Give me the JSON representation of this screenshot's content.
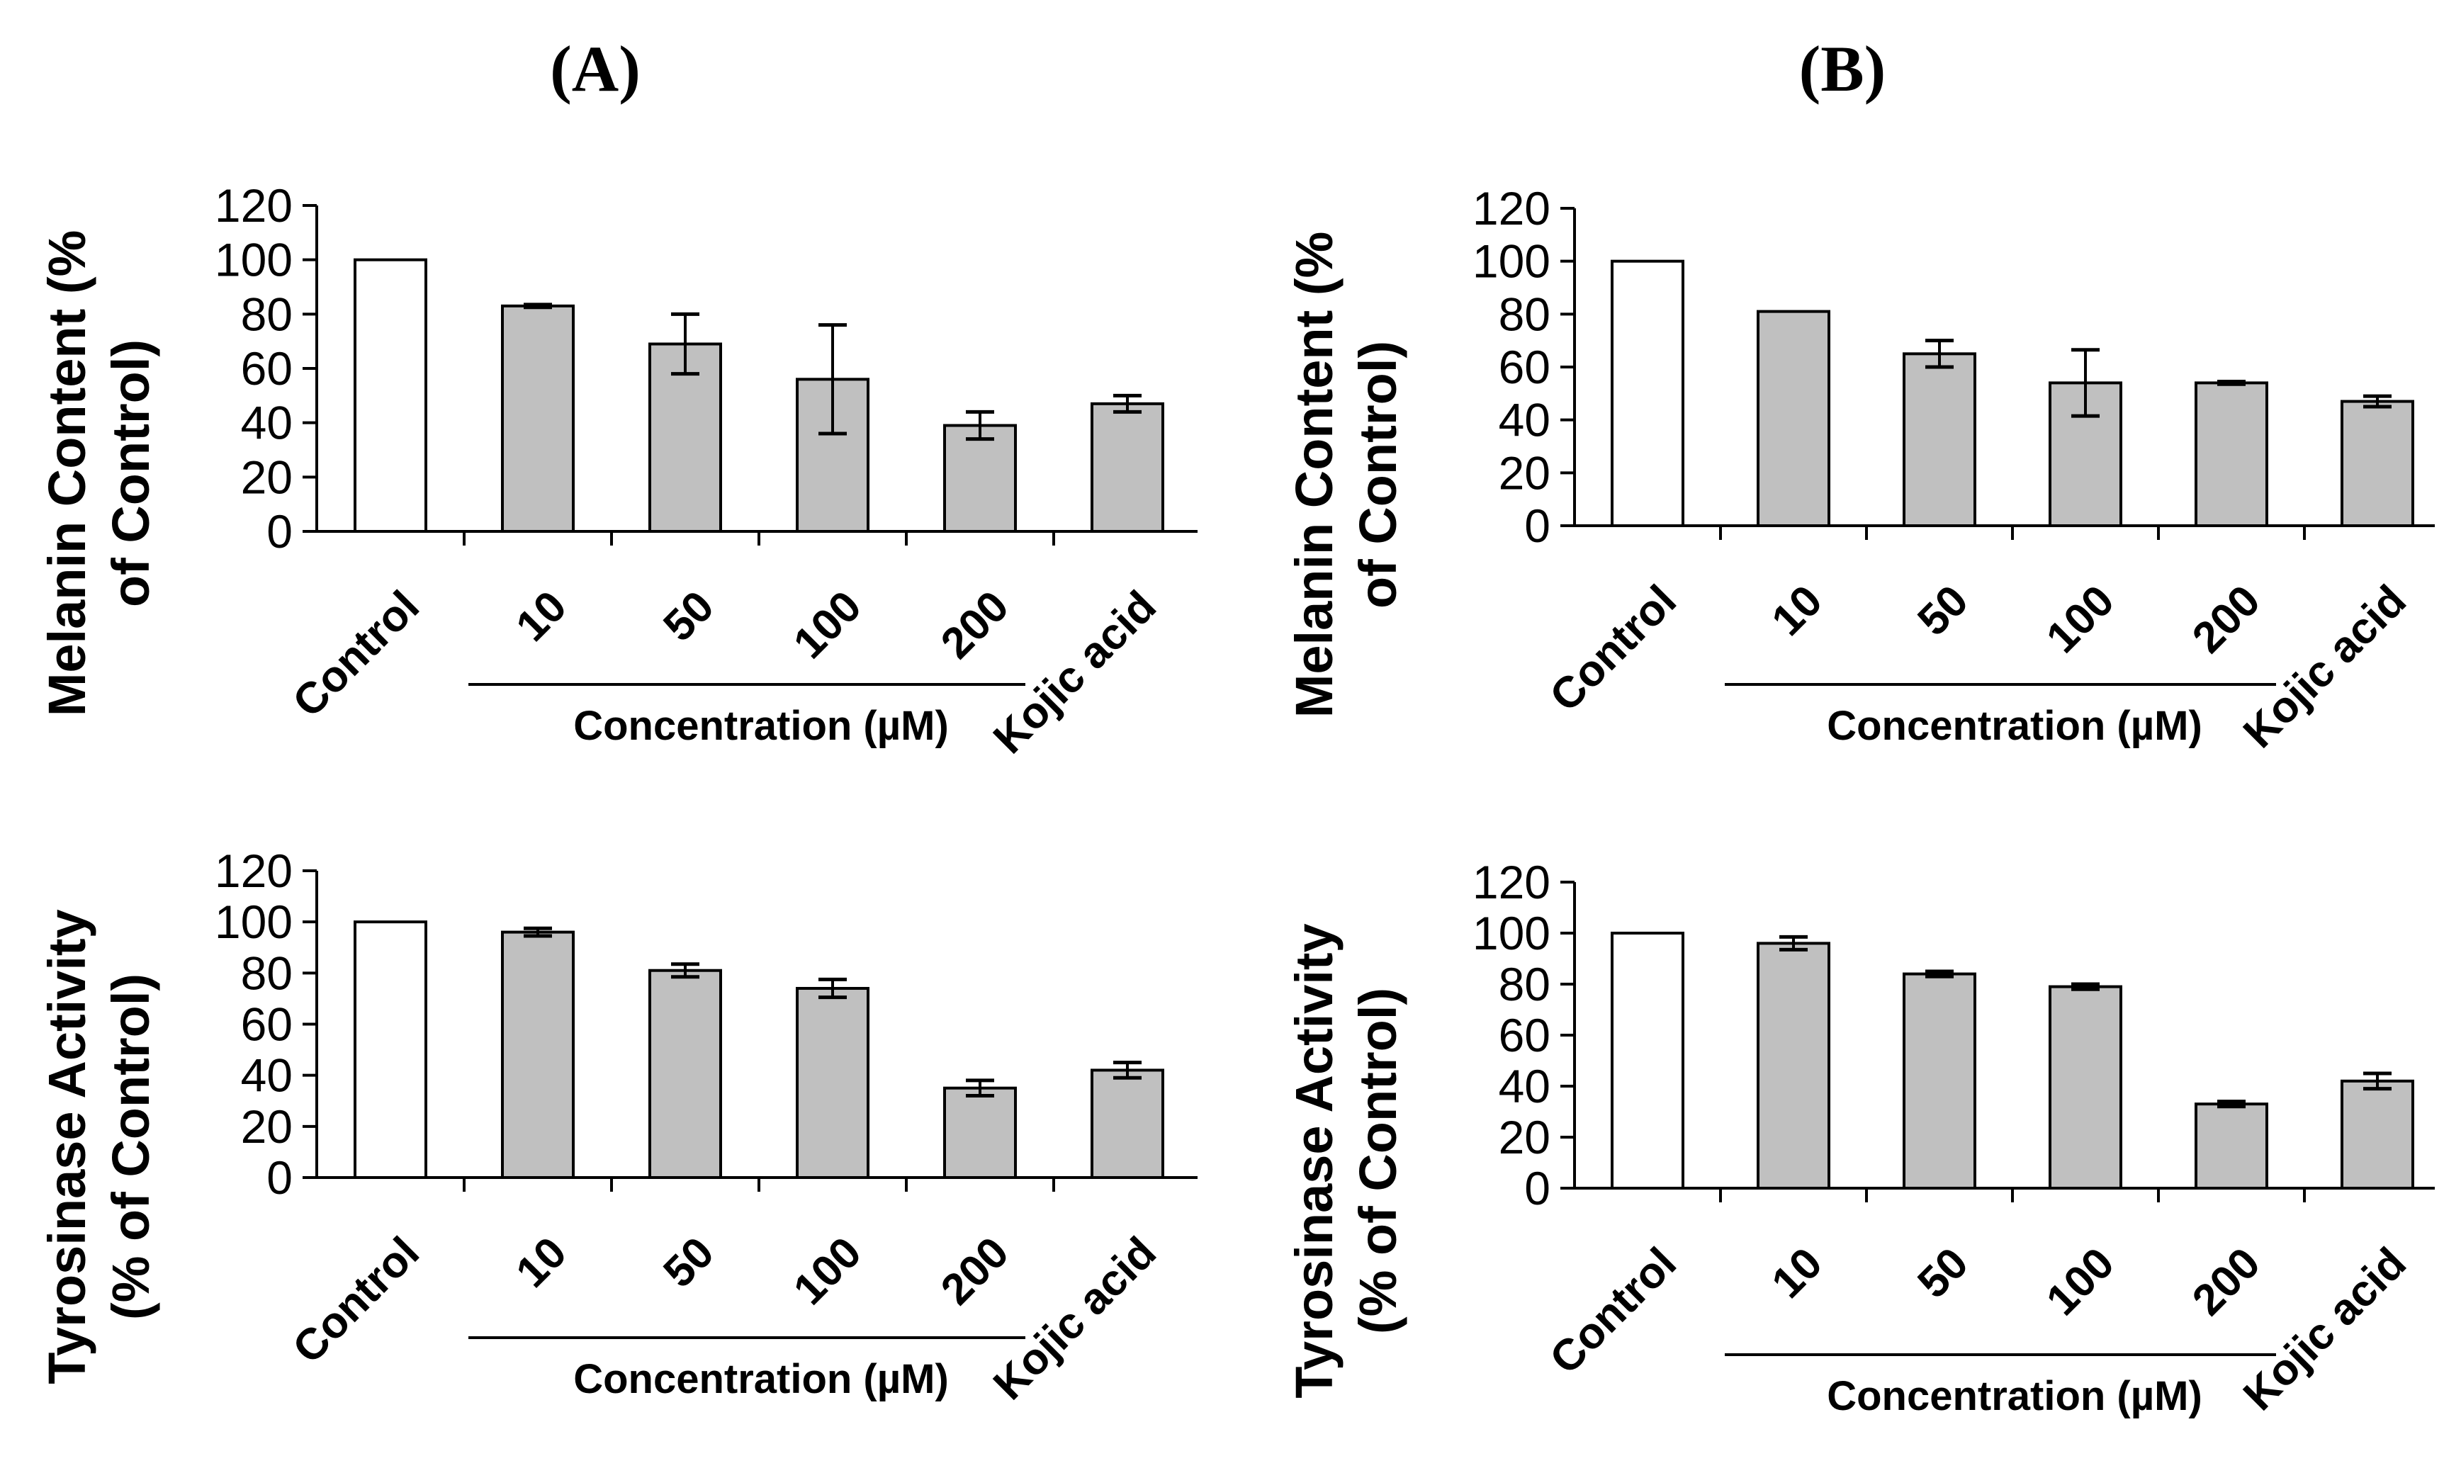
{
  "panels": [
    {
      "id": "A",
      "label": "(A)"
    },
    {
      "id": "B",
      "label": "(B)"
    }
  ],
  "chart_data": [
    {
      "type": "bar",
      "panel": "(A)",
      "ylabel_lines": [
        "Melanin Content (%",
        "of Control)"
      ],
      "categories": [
        "Control",
        "10",
        "50",
        "100",
        "200",
        "Kojic acid"
      ],
      "values": [
        100,
        83,
        69,
        56,
        39,
        47
      ],
      "errors": [
        0,
        0.5,
        11,
        20,
        5,
        3
      ],
      "bar_colors": [
        "#ffffff",
        "#c0c0c0",
        "#c0c0c0",
        "#c0c0c0",
        "#c0c0c0",
        "#c0c0c0"
      ],
      "ylim": [
        0,
        120
      ],
      "yticks": [
        0,
        20,
        40,
        60,
        80,
        100,
        120
      ],
      "xgroup_label": "Concentration (µM)",
      "xgroup_span": [
        "10",
        "200"
      ]
    },
    {
      "type": "bar",
      "panel": "(B)",
      "ylabel_lines": [
        "Melanin Content (%",
        "of Control)"
      ],
      "categories": [
        "Control",
        "10",
        "50",
        "100",
        "200",
        "Kojic acid"
      ],
      "values": [
        100,
        81,
        65,
        54,
        54,
        47
      ],
      "errors": [
        0,
        0,
        5,
        12.5,
        0.5,
        2
      ],
      "bar_colors": [
        "#ffffff",
        "#c0c0c0",
        "#c0c0c0",
        "#c0c0c0",
        "#c0c0c0",
        "#c0c0c0"
      ],
      "ylim": [
        0,
        120
      ],
      "yticks": [
        0,
        20,
        40,
        60,
        80,
        100,
        120
      ],
      "xgroup_label": "Concentration (µM)",
      "xgroup_span": [
        "10",
        "200"
      ]
    },
    {
      "type": "bar",
      "panel": "(A)",
      "ylabel_lines": [
        "Tyrosinase Activity",
        "(% of Control)"
      ],
      "categories": [
        "Control",
        "10",
        "50",
        "100",
        "200",
        "Kojic acid"
      ],
      "values": [
        100,
        96,
        81,
        74,
        35,
        42
      ],
      "errors": [
        0,
        1.5,
        2.5,
        3.5,
        3,
        3
      ],
      "bar_colors": [
        "#ffffff",
        "#c0c0c0",
        "#c0c0c0",
        "#c0c0c0",
        "#c0c0c0",
        "#c0c0c0"
      ],
      "ylim": [
        0,
        120
      ],
      "yticks": [
        0,
        20,
        40,
        60,
        80,
        100,
        120
      ],
      "xgroup_label": "Concentration (µM)",
      "xgroup_span": [
        "10",
        "200"
      ]
    },
    {
      "type": "bar",
      "panel": "(B)",
      "ylabel_lines": [
        "Tyrosinase Activity",
        "(% of Control)"
      ],
      "categories": [
        "Control",
        "10",
        "50",
        "100",
        "200",
        "Kojic acid"
      ],
      "values": [
        100,
        96,
        84,
        79,
        33,
        42
      ],
      "errors": [
        0,
        2.5,
        1,
        1,
        1,
        3
      ],
      "bar_colors": [
        "#ffffff",
        "#c0c0c0",
        "#c0c0c0",
        "#c0c0c0",
        "#c0c0c0",
        "#c0c0c0"
      ],
      "ylim": [
        0,
        120
      ],
      "yticks": [
        0,
        20,
        40,
        60,
        80,
        100,
        120
      ],
      "xgroup_label": "Concentration (µM)",
      "xgroup_span": [
        "10",
        "200"
      ]
    }
  ]
}
